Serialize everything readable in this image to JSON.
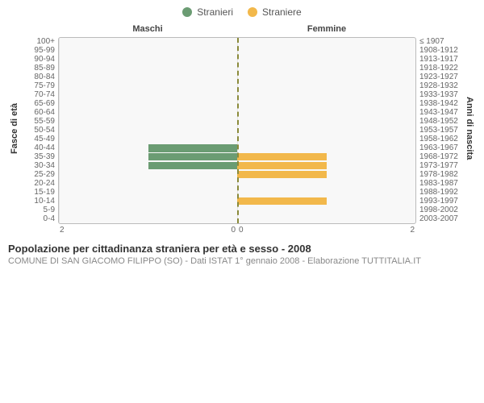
{
  "legend": {
    "series": [
      {
        "label": "Stranieri",
        "color": "#6b9c73"
      },
      {
        "label": "Straniere",
        "color": "#f2b84b"
      }
    ]
  },
  "headers": {
    "left": "Maschi",
    "right": "Femmine"
  },
  "axis_titles": {
    "left": "Fasce di età",
    "right": "Anni di nascita"
  },
  "age_bands": [
    {
      "age": "100+",
      "birth": "≤ 1907",
      "male": 0,
      "female": 0
    },
    {
      "age": "95-99",
      "birth": "1908-1912",
      "male": 0,
      "female": 0
    },
    {
      "age": "90-94",
      "birth": "1913-1917",
      "male": 0,
      "female": 0
    },
    {
      "age": "85-89",
      "birth": "1918-1922",
      "male": 0,
      "female": 0
    },
    {
      "age": "80-84",
      "birth": "1923-1927",
      "male": 0,
      "female": 0
    },
    {
      "age": "75-79",
      "birth": "1928-1932",
      "male": 0,
      "female": 0
    },
    {
      "age": "70-74",
      "birth": "1933-1937",
      "male": 0,
      "female": 0
    },
    {
      "age": "65-69",
      "birth": "1938-1942",
      "male": 0,
      "female": 0
    },
    {
      "age": "60-64",
      "birth": "1943-1947",
      "male": 0,
      "female": 0
    },
    {
      "age": "55-59",
      "birth": "1948-1952",
      "male": 0,
      "female": 0
    },
    {
      "age": "50-54",
      "birth": "1953-1957",
      "male": 0,
      "female": 0
    },
    {
      "age": "45-49",
      "birth": "1958-1962",
      "male": 0,
      "female": 0
    },
    {
      "age": "40-44",
      "birth": "1963-1967",
      "male": 1,
      "female": 0
    },
    {
      "age": "35-39",
      "birth": "1968-1972",
      "male": 1,
      "female": 1
    },
    {
      "age": "30-34",
      "birth": "1973-1977",
      "male": 1,
      "female": 1
    },
    {
      "age": "25-29",
      "birth": "1978-1982",
      "male": 0,
      "female": 1
    },
    {
      "age": "20-24",
      "birth": "1983-1987",
      "male": 0,
      "female": 0
    },
    {
      "age": "15-19",
      "birth": "1988-1992",
      "male": 0,
      "female": 0
    },
    {
      "age": "10-14",
      "birth": "1993-1997",
      "male": 0,
      "female": 1
    },
    {
      "age": "5-9",
      "birth": "1998-2002",
      "male": 0,
      "female": 0
    },
    {
      "age": "0-4",
      "birth": "2003-2007",
      "male": 0,
      "female": 0
    }
  ],
  "chart": {
    "type": "population-pyramid",
    "x_max": 2,
    "x_ticks_left": [
      "2",
      "0"
    ],
    "x_ticks_right": [
      "0",
      "2"
    ],
    "male_color": "#6b9c73",
    "female_color": "#f2b84b",
    "background_color": "#f8f8f8",
    "grid_color": "#e3e3e3",
    "center_line_color": "#8a8a3a",
    "grid_positions_pct": [
      0,
      100
    ]
  },
  "caption": {
    "title": "Popolazione per cittadinanza straniera per età e sesso - 2008",
    "subtitle": "COMUNE DI SAN GIACOMO FILIPPO (SO) - Dati ISTAT 1° gennaio 2008 - Elaborazione TUTTITALIA.IT"
  }
}
